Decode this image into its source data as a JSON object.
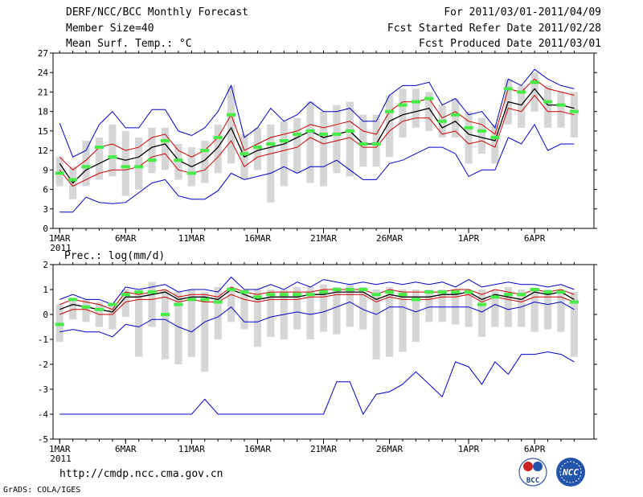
{
  "header": {
    "title": "DERF/NCC/BCC Monthly Forecast",
    "member_size": "Member Size=40",
    "variable": "Mean Surf. Temp.: °C",
    "forecast_period": "For 2011/03/01-2011/04/09",
    "fcst_started": "Fcst Started Refer Date 2011/02/28",
    "fcst_produced": "Fcst Produced Date 2011/03/01"
  },
  "footer": {
    "url": "http://cmdp.ncc.cma.gov.cn",
    "credit": "GrADS: COLA/IGES",
    "logo_bcc": "BCC",
    "logo_ncc": "NCC"
  },
  "colors": {
    "box": "#d6d6d6",
    "envelope": "#0000cc",
    "spread": "#cc0000",
    "mean": "#000000",
    "obs_marker": "#44ee44"
  },
  "chart_data": [
    {
      "type": "line",
      "name": "temperature",
      "title": "Mean Surf. Temp.: °C",
      "x_ticks": [
        "1MAR",
        "6MAR",
        "11MAR",
        "16MAR",
        "21MAR",
        "26MAR",
        "1APR",
        "6APR"
      ],
      "x_tick_days": [
        1,
        6,
        11,
        16,
        21,
        26,
        32,
        37
      ],
      "x_year_label": "2011",
      "y_ticks": [
        "0",
        "3",
        "6",
        "9",
        "12",
        "15",
        "18",
        "21",
        "24",
        "27"
      ],
      "ylim": [
        0,
        27
      ],
      "xlim": [
        0.5,
        41.5
      ],
      "days": [
        1,
        2,
        3,
        4,
        5,
        6,
        7,
        8,
        9,
        10,
        11,
        12,
        13,
        14,
        15,
        16,
        17,
        18,
        19,
        20,
        21,
        22,
        23,
        24,
        25,
        26,
        27,
        28,
        29,
        30,
        31,
        32,
        33,
        34,
        35,
        36,
        37,
        38,
        39,
        40
      ],
      "series": [
        {
          "name": "max",
          "values": [
            16.2,
            11.0,
            12.0,
            16.0,
            18.0,
            15.5,
            15.5,
            18.3,
            18.3,
            15.0,
            14.3,
            15.5,
            18.0,
            22.0,
            14.0,
            15.5,
            18.5,
            16.5,
            17.5,
            19.5,
            18.0,
            18.0,
            18.5,
            16.5,
            16.5,
            20.5,
            22.0,
            22.0,
            22.5,
            19.0,
            20.0,
            17.5,
            18.0,
            15.5,
            23.0,
            22.0,
            24.5,
            23.0,
            22.0,
            21.5
          ]
        },
        {
          "name": "upper",
          "values": [
            11.0,
            9.0,
            10.5,
            12.5,
            13.0,
            12.0,
            12.5,
            14.0,
            14.5,
            12.0,
            11.0,
            12.0,
            14.0,
            17.5,
            12.0,
            13.0,
            14.0,
            14.5,
            15.0,
            16.0,
            15.5,
            16.0,
            16.5,
            15.0,
            14.5,
            18.0,
            19.5,
            19.5,
            20.0,
            17.0,
            18.0,
            16.5,
            16.0,
            14.5,
            21.5,
            21.0,
            23.0,
            21.5,
            21.0,
            20.5
          ]
        },
        {
          "name": "mean",
          "values": [
            10.0,
            7.0,
            9.0,
            10.0,
            11.0,
            10.5,
            11.0,
            12.5,
            13.0,
            10.5,
            9.5,
            10.5,
            12.5,
            15.5,
            11.0,
            12.0,
            12.5,
            13.0,
            14.0,
            15.0,
            14.0,
            14.5,
            15.0,
            13.0,
            13.0,
            16.5,
            17.5,
            18.0,
            18.5,
            15.5,
            16.5,
            14.5,
            14.0,
            13.5,
            19.5,
            19.0,
            21.5,
            19.0,
            19.0,
            18.5
          ]
        },
        {
          "name": "lower",
          "values": [
            9.0,
            6.5,
            7.5,
            8.5,
            9.0,
            9.0,
            9.5,
            11.0,
            11.5,
            9.0,
            8.5,
            9.0,
            11.0,
            13.5,
            9.5,
            11.0,
            11.5,
            12.0,
            12.5,
            14.0,
            13.0,
            13.5,
            14.0,
            12.5,
            12.5,
            15.0,
            16.5,
            17.0,
            17.0,
            14.5,
            15.0,
            13.0,
            13.5,
            12.5,
            18.5,
            18.0,
            20.5,
            18.0,
            18.0,
            17.5
          ]
        },
        {
          "name": "min",
          "values": [
            2.5,
            2.5,
            4.8,
            4.0,
            3.8,
            4.0,
            5.5,
            7.0,
            7.5,
            5.0,
            4.5,
            4.5,
            5.8,
            8.5,
            7.5,
            8.0,
            8.5,
            9.5,
            8.5,
            9.5,
            9.5,
            10.5,
            9.0,
            7.5,
            7.5,
            10.0,
            10.5,
            11.5,
            12.5,
            12.5,
            11.5,
            8.0,
            9.0,
            9.0,
            14.0,
            13.0,
            16.0,
            12.0,
            13.0,
            13.0
          ]
        }
      ],
      "boxes": [
        [
          6.5,
          11.0
        ],
        [
          4.5,
          9.5
        ],
        [
          6.5,
          13.5
        ],
        [
          7.5,
          14.0
        ],
        [
          8.0,
          16.0
        ],
        [
          5.0,
          15.0
        ],
        [
          6.0,
          14.0
        ],
        [
          8.5,
          15.5
        ],
        [
          9.0,
          15.5
        ],
        [
          7.5,
          13.0
        ],
        [
          6.5,
          12.5
        ],
        [
          7.0,
          13.5
        ],
        [
          8.5,
          16.0
        ],
        [
          10.0,
          22.0
        ],
        [
          7.5,
          14.5
        ],
        [
          9.0,
          15.5
        ],
        [
          4.0,
          16.0
        ],
        [
          6.5,
          16.5
        ],
        [
          8.5,
          17.0
        ],
        [
          7.0,
          19.5
        ],
        [
          6.5,
          18.0
        ],
        [
          8.5,
          19.0
        ],
        [
          8.0,
          19.5
        ],
        [
          9.5,
          17.5
        ],
        [
          9.5,
          17.5
        ],
        [
          11.0,
          20.5
        ],
        [
          14.0,
          21.5
        ],
        [
          15.5,
          21.5
        ],
        [
          15.0,
          21.0
        ],
        [
          14.0,
          19.0
        ],
        [
          14.0,
          20.0
        ],
        [
          10.0,
          18.0
        ],
        [
          11.5,
          17.0
        ],
        [
          10.0,
          16.0
        ],
        [
          16.0,
          23.0
        ],
        [
          15.5,
          22.0
        ],
        [
          18.0,
          24.0
        ],
        [
          15.5,
          22.0
        ],
        [
          15.5,
          21.0
        ],
        [
          14.0,
          21.0
        ]
      ],
      "observed": [
        8.5,
        7.5,
        9.5,
        12.5,
        11.0,
        9.5,
        9.5,
        10.5,
        13.5,
        10.5,
        8.5,
        12.0,
        14.0,
        17.5,
        11.5,
        12.5,
        13.0,
        13.5,
        14.5,
        15.0,
        14.5,
        14.5,
        15.0,
        13.0,
        13.0,
        18.0,
        19.0,
        19.5,
        20.0,
        16.5,
        17.5,
        15.5,
        15.0,
        14.0,
        21.5,
        21.0,
        22.5,
        19.5,
        19.0,
        18.0
      ]
    },
    {
      "type": "line",
      "name": "precipitation",
      "title": "Prec.: log(mm/d)",
      "x_ticks": [
        "1MAR",
        "6MAR",
        "11MAR",
        "16MAR",
        "21MAR",
        "26MAR",
        "1APR",
        "6APR"
      ],
      "x_tick_days": [
        1,
        6,
        11,
        16,
        21,
        26,
        32,
        37
      ],
      "x_year_label": "2011",
      "y_ticks": [
        "-5",
        "-4",
        "-3",
        "-2",
        "-1",
        "0",
        "1",
        "2"
      ],
      "ylim": [
        -5,
        2
      ],
      "xlim": [
        0.5,
        41.5
      ],
      "days": [
        1,
        2,
        3,
        4,
        5,
        6,
        7,
        8,
        9,
        10,
        11,
        12,
        13,
        14,
        15,
        16,
        17,
        18,
        19,
        20,
        21,
        22,
        23,
        24,
        25,
        26,
        27,
        28,
        29,
        30,
        31,
        32,
        33,
        34,
        35,
        36,
        37,
        38,
        39,
        40
      ],
      "series": [
        {
          "name": "max",
          "values": [
            0.6,
            0.8,
            0.6,
            0.6,
            0.4,
            1.1,
            1.0,
            1.1,
            1.2,
            0.9,
            1.0,
            1.0,
            0.9,
            1.5,
            1.0,
            1.0,
            1.2,
            1.0,
            1.3,
            1.1,
            1.4,
            1.3,
            1.2,
            1.3,
            1.2,
            1.3,
            1.2,
            1.3,
            1.2,
            1.3,
            1.1,
            1.4,
            1.1,
            1.2,
            1.3,
            1.2,
            1.2,
            1.1,
            1.2,
            1.0
          ]
        },
        {
          "name": "upper",
          "values": [
            0.4,
            0.6,
            0.5,
            0.4,
            0.2,
            0.9,
            0.8,
            0.9,
            1.0,
            0.7,
            0.8,
            0.8,
            0.7,
            1.1,
            0.9,
            0.8,
            0.9,
            0.9,
            0.9,
            0.9,
            1.0,
            1.0,
            1.0,
            1.0,
            0.8,
            1.0,
            0.9,
            0.9,
            0.9,
            0.9,
            1.0,
            1.0,
            0.8,
            1.0,
            0.9,
            0.8,
            1.0,
            0.9,
            1.0,
            0.8
          ]
        },
        {
          "name": "mean",
          "values": [
            0.2,
            0.4,
            0.3,
            0.2,
            0.1,
            0.7,
            0.7,
            0.8,
            0.9,
            0.6,
            0.7,
            0.7,
            0.6,
            1.0,
            0.8,
            0.6,
            0.7,
            0.7,
            0.7,
            0.8,
            0.8,
            0.9,
            0.9,
            0.9,
            0.6,
            0.8,
            0.7,
            0.7,
            0.7,
            0.8,
            0.8,
            0.9,
            0.6,
            0.8,
            0.7,
            0.6,
            0.9,
            0.8,
            0.9,
            0.6
          ]
        },
        {
          "name": "lower",
          "values": [
            0.0,
            0.2,
            0.2,
            0.0,
            0.0,
            0.5,
            0.6,
            0.6,
            0.7,
            0.5,
            0.6,
            0.5,
            0.5,
            0.8,
            0.6,
            0.5,
            0.6,
            0.6,
            0.6,
            0.7,
            0.7,
            0.8,
            0.8,
            0.8,
            0.5,
            0.7,
            0.6,
            0.6,
            0.6,
            0.7,
            0.7,
            0.8,
            0.5,
            0.7,
            0.6,
            0.5,
            0.7,
            0.7,
            0.7,
            0.5
          ]
        },
        {
          "name": "min",
          "values": [
            -0.7,
            -0.6,
            -0.7,
            -0.7,
            -0.9,
            -0.4,
            -0.5,
            -0.2,
            -0.2,
            -0.5,
            -0.7,
            -0.3,
            -0.1,
            0.3,
            -0.3,
            -0.3,
            -0.1,
            0.0,
            0.1,
            0.0,
            0.1,
            0.3,
            0.5,
            0.2,
            0.0,
            0.3,
            0.3,
            0.1,
            0.3,
            0.3,
            0.3,
            0.3,
            0.1,
            0.4,
            0.2,
            0.3,
            0.5,
            0.4,
            0.5,
            0.2
          ]
        },
        {
          "name": "min_outer",
          "values": [
            -4.0,
            -4.0,
            -4.0,
            -4.0,
            -4.0,
            -4.0,
            -4.0,
            -4.0,
            -4.0,
            -4.0,
            -4.0,
            -3.4,
            -4.0,
            -4.0,
            -4.0,
            -4.0,
            -4.0,
            -4.0,
            -4.0,
            -4.0,
            -4.0,
            -2.7,
            -2.7,
            -4.0,
            -3.2,
            -3.1,
            -2.8,
            -2.3,
            -2.8,
            -3.3,
            -1.9,
            -2.1,
            -2.8,
            -1.9,
            -2.4,
            -1.6,
            -1.6,
            -1.5,
            -1.6,
            -1.9
          ]
        }
      ],
      "boxes": [
        [
          -1.1,
          0.4
        ],
        [
          -0.2,
          0.6
        ],
        [
          -0.3,
          0.6
        ],
        [
          -0.5,
          0.5
        ],
        [
          -0.6,
          0.4
        ],
        [
          -0.1,
          1.0
        ],
        [
          -1.7,
          0.9
        ],
        [
          -0.5,
          1.3
        ],
        [
          -1.8,
          1.0
        ],
        [
          -2.0,
          0.9
        ],
        [
          -1.7,
          1.0
        ],
        [
          -2.3,
          0.9
        ],
        [
          -1.0,
          1.1
        ],
        [
          -0.3,
          1.1
        ],
        [
          -0.6,
          1.0
        ],
        [
          -1.3,
          1.0
        ],
        [
          -0.9,
          1.0
        ],
        [
          -1.0,
          1.0
        ],
        [
          -0.6,
          1.1
        ],
        [
          -1.0,
          1.1
        ],
        [
          -0.7,
          1.2
        ],
        [
          -0.8,
          1.1
        ],
        [
          -0.5,
          1.2
        ],
        [
          -0.6,
          1.1
        ],
        [
          -1.8,
          1.0
        ],
        [
          -1.7,
          1.1
        ],
        [
          -1.5,
          1.0
        ],
        [
          -1.1,
          1.0
        ],
        [
          -0.3,
          1.0
        ],
        [
          -0.3,
          1.0
        ],
        [
          -0.4,
          1.0
        ],
        [
          -0.5,
          1.0
        ],
        [
          -0.9,
          1.0
        ],
        [
          -0.5,
          1.0
        ],
        [
          -0.5,
          1.1
        ],
        [
          -0.5,
          1.0
        ],
        [
          -0.7,
          1.0
        ],
        [
          -0.6,
          1.0
        ],
        [
          -0.7,
          1.0
        ],
        [
          -1.7,
          0.9
        ]
      ],
      "observed": [
        -0.4,
        0.6,
        0.3,
        0.2,
        0.4,
        0.8,
        0.9,
        0.9,
        0.0,
        0.4,
        0.6,
        0.6,
        0.5,
        1.0,
        0.9,
        0.7,
        0.8,
        0.8,
        0.8,
        0.8,
        0.9,
        1.0,
        1.0,
        1.0,
        0.8,
        0.9,
        0.8,
        0.6,
        0.9,
        0.9,
        0.9,
        0.9,
        0.4,
        0.7,
        0.8,
        0.8,
        1.0,
        0.9,
        0.9,
        0.5
      ]
    }
  ]
}
